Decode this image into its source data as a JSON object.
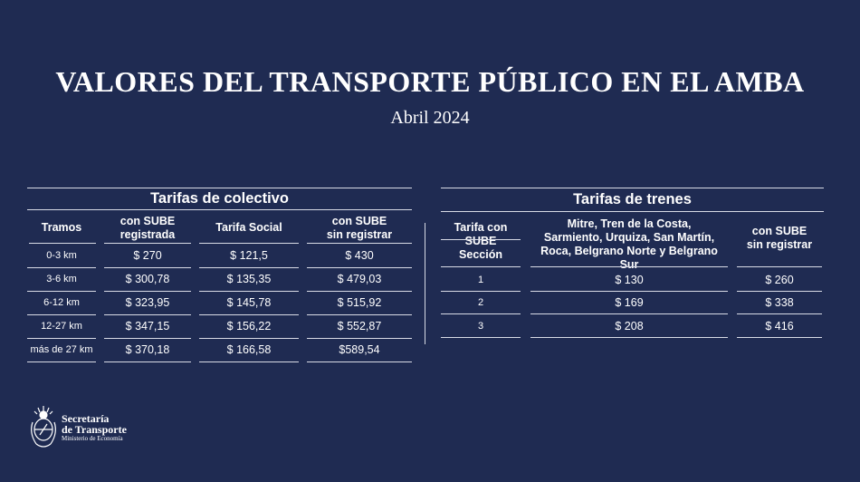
{
  "title": "VALORES DEL TRANSPORTE PÚBLICO EN EL AMBA",
  "subtitle": "Abril 2024",
  "colectivo": {
    "section_title": "Tarifas de colectivo",
    "headers": [
      "Tramos",
      "con SUBE\nregistrada",
      "Tarifa Social",
      "con  SUBE\nsin registrar"
    ],
    "rows": [
      [
        "0-3 km",
        "$ 270",
        "$ 121,5",
        "$ 430"
      ],
      [
        "3-6 km",
        "$ 300,78",
        "$ 135,35",
        "$ 479,03"
      ],
      [
        "6-12 km",
        "$ 323,95",
        "$ 145,78",
        "$ 515,92"
      ],
      [
        "12-27 km",
        "$ 347,15",
        "$ 156,22",
        "$ 552,87"
      ],
      [
        "más de 27 km",
        "$ 370,18",
        "$ 166,58",
        "$589,54"
      ]
    ]
  },
  "trenes": {
    "section_title": "Tarifas de trenes",
    "group_header": "Tarifa con SUBE",
    "headers": [
      "Sección",
      "Mitre, Tren de la Costa,\nSarmiento, Urquiza, San Martín,\nRoca, Belgrano Norte y Belgrano Sur",
      "con  SUBE\nsin registrar"
    ],
    "rows": [
      [
        "1",
        "$ 130",
        "$ 260"
      ],
      [
        "2",
        "$ 169",
        "$ 338"
      ],
      [
        "3",
        "$ 208",
        "$ 416"
      ]
    ]
  },
  "logo": {
    "line1": "Secretaría",
    "line2": "de Transporte",
    "line3": "Ministerio de Economía",
    "icon": "argentina-coat-of-arms-icon"
  },
  "colors": {
    "background": "#1f2b52",
    "text": "#ffffff",
    "rule": "#d8dbe6"
  }
}
